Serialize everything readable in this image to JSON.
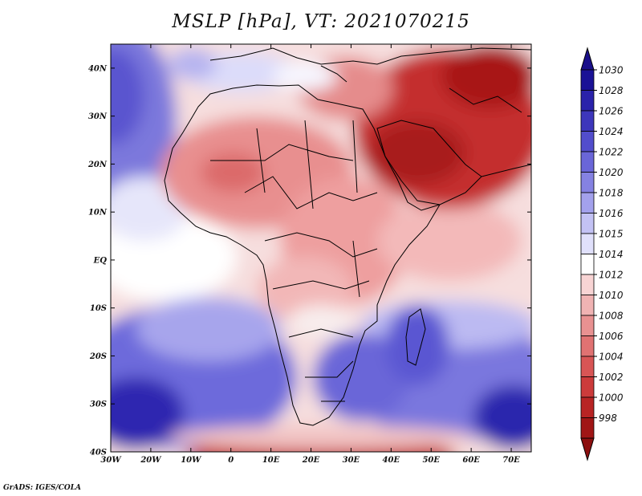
{
  "title": "MSLP [hPa], VT: 2021070215",
  "credit": "GrADS: IGES/COLA",
  "map": {
    "lon_range": [
      -30,
      75
    ],
    "lat_range": [
      -40,
      45
    ],
    "lat_ticks": [
      {
        "value": 40,
        "label": "40N"
      },
      {
        "value": 30,
        "label": "30N"
      },
      {
        "value": 20,
        "label": "20N"
      },
      {
        "value": 10,
        "label": "10N"
      },
      {
        "value": 0,
        "label": "EQ"
      },
      {
        "value": -10,
        "label": "10S"
      },
      {
        "value": -20,
        "label": "20S"
      },
      {
        "value": -30,
        "label": "30S"
      },
      {
        "value": -40,
        "label": "40S"
      }
    ],
    "lon_ticks": [
      {
        "value": -30,
        "label": "30W"
      },
      {
        "value": -20,
        "label": "20W"
      },
      {
        "value": -10,
        "label": "10W"
      },
      {
        "value": 0,
        "label": "0"
      },
      {
        "value": 10,
        "label": "10E"
      },
      {
        "value": 20,
        "label": "20E"
      },
      {
        "value": 30,
        "label": "30E"
      },
      {
        "value": 40,
        "label": "40E"
      },
      {
        "value": 50,
        "label": "50E"
      },
      {
        "value": 60,
        "label": "60E"
      },
      {
        "value": 70,
        "label": "70E"
      }
    ]
  },
  "colorbar": {
    "top_color": "#1a0f8a",
    "bottom_color": "#8c0f0f",
    "levels": [
      {
        "label": "1030",
        "color": "#1a1296"
      },
      {
        "label": "1028",
        "color": "#2a22aa"
      },
      {
        "label": "1026",
        "color": "#3d36bb"
      },
      {
        "label": "1024",
        "color": "#524dcc"
      },
      {
        "label": "1022",
        "color": "#6a66d8"
      },
      {
        "label": "1020",
        "color": "#8582e2"
      },
      {
        "label": "1018",
        "color": "#a3a1ec"
      },
      {
        "label": "1016",
        "color": "#c3c2f4"
      },
      {
        "label": "1015",
        "color": "#e0e0fb"
      },
      {
        "label": "1014",
        "color": "#ffffff"
      },
      {
        "label": "1012",
        "color": "#f8d4d4"
      },
      {
        "label": "1010",
        "color": "#f0b3b3"
      },
      {
        "label": "1008",
        "color": "#e89191"
      },
      {
        "label": "1006",
        "color": "#e07272"
      },
      {
        "label": "1004",
        "color": "#d85555"
      },
      {
        "label": "1002",
        "color": "#cc3b3b"
      },
      {
        "label": "1000",
        "color": "#b82424"
      },
      {
        "label": "998",
        "color": "#a01616"
      }
    ]
  }
}
